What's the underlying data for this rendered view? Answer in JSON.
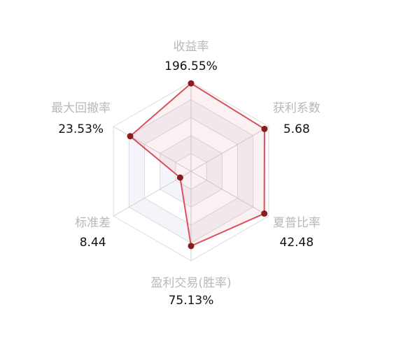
{
  "chart_data": {
    "type": "radar",
    "categories": [
      "收益率",
      "获利系数",
      "夏普比率",
      "盈利交易(胜率)",
      "标准差",
      "最大回撤率"
    ],
    "values": [
      196.55,
      5.68,
      42.48,
      75.13,
      8.44,
      23.53
    ],
    "value_labels": [
      "196.55%",
      "5.68",
      "42.48",
      "75.13%",
      "8.44",
      "23.53%"
    ],
    "rlim": [
      [
        0,
        200
      ],
      [
        0,
        6
      ],
      [
        0,
        45
      ],
      [
        0,
        90
      ],
      [
        0,
        60
      ],
      [
        0,
        30
      ]
    ],
    "color": "#d9505c",
    "point_color": "#8b1c1c"
  }
}
